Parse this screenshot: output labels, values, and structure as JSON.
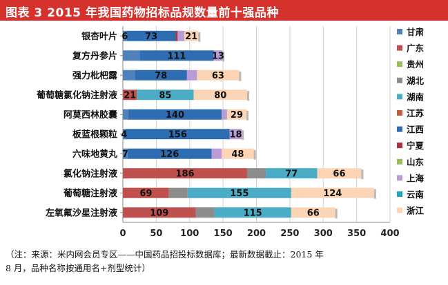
{
  "title": "图表 3    2015 年我国药物招标品规数量前十强品种",
  "note": {
    "line1": "（注：来源：米内网会员专区——中国药品招投标数据库；最新数据截止：2015 年",
    "line2": "8 月，品种名称按通用名+剂型统计）"
  },
  "chart_data": {
    "type": "bar",
    "orientation": "horizontal",
    "stacked": true,
    "xlim": [
      0,
      400
    ],
    "xticks": [
      0,
      50,
      100,
      150,
      200,
      250,
      300,
      350,
      400
    ],
    "grid": true,
    "legend": "right",
    "categories": [
      "银杏叶片",
      "复方丹参片",
      "强力枇杷露",
      "葡萄糖氯化钠注射液",
      "阿莫西林胶囊",
      "板蓝根颗粒",
      "六味地黄丸",
      "氯化钠注射液",
      "葡萄糖注射液",
      "左氧氟沙星注射液"
    ],
    "series": [
      {
        "name": "甘肃",
        "color": "#4f81bd",
        "values": [
          6,
          25,
          18,
          0,
          8,
          4,
          7,
          0,
          0,
          0
        ]
      },
      {
        "name": "广东",
        "color": "#c0504d",
        "values": [
          0,
          0,
          0,
          21,
          0,
          0,
          0,
          186,
          69,
          109
        ]
      },
      {
        "name": "贵州",
        "color": "#9bbb59",
        "values": [
          0,
          0,
          0,
          0,
          0,
          0,
          0,
          0,
          0,
          0
        ]
      },
      {
        "name": "湖北",
        "color": "#8c8c8c",
        "values": [
          0,
          0,
          0,
          0,
          0,
          0,
          0,
          28,
          28,
          28
        ]
      },
      {
        "name": "湖南",
        "color": "#4bacc6",
        "values": [
          0,
          0,
          0,
          85,
          0,
          0,
          0,
          77,
          155,
          115
        ]
      },
      {
        "name": "江苏",
        "color": "#c0603a",
        "values": [
          0,
          0,
          0,
          0,
          0,
          0,
          0,
          0,
          0,
          0
        ]
      },
      {
        "name": "江西",
        "color": "#2f6db3",
        "values": [
          73,
          111,
          78,
          0,
          140,
          156,
          126,
          0,
          0,
          0
        ]
      },
      {
        "name": "宁夏",
        "color": "#a8333c",
        "values": [
          3,
          0,
          0,
          0,
          0,
          0,
          0,
          0,
          0,
          0
        ]
      },
      {
        "name": "山东",
        "color": "#9bbb59",
        "values": [
          0,
          0,
          0,
          0,
          0,
          0,
          0,
          0,
          0,
          0
        ]
      },
      {
        "name": "上海",
        "color": "#b99bd6",
        "values": [
          10,
          13,
          15,
          0,
          8,
          18,
          15,
          0,
          0,
          0
        ]
      },
      {
        "name": "云南",
        "color": "#1da6b8",
        "values": [
          0,
          0,
          0,
          0,
          0,
          0,
          0,
          0,
          0,
          0
        ]
      },
      {
        "name": "浙江",
        "color": "#fbd5b5",
        "values": [
          21,
          0,
          63,
          80,
          29,
          0,
          48,
          66,
          124,
          66
        ]
      }
    ],
    "data_labels": [
      [
        {
          "series": "甘肃",
          "text": "6"
        },
        {
          "series": "江西",
          "text": "73"
        },
        {
          "series": "浙江",
          "text": "21"
        }
      ],
      [
        {
          "series": "江西",
          "text": "111"
        },
        {
          "series": "上海",
          "text": "13"
        }
      ],
      [
        {
          "series": "江西",
          "text": "78"
        },
        {
          "series": "浙江",
          "text": "63"
        }
      ],
      [
        {
          "series": "广东",
          "text": "21"
        },
        {
          "series": "湖南",
          "text": "85"
        },
        {
          "series": "浙江",
          "text": "80"
        }
      ],
      [
        {
          "series": "江西",
          "text": "140"
        },
        {
          "series": "浙江",
          "text": "29"
        }
      ],
      [
        {
          "series": "甘肃",
          "text": "4"
        },
        {
          "series": "江西",
          "text": "156"
        },
        {
          "series": "上海",
          "text": "18"
        }
      ],
      [
        {
          "series": "甘肃",
          "text": "7"
        },
        {
          "series": "江西",
          "text": "126"
        },
        {
          "series": "浙江",
          "text": "48"
        }
      ],
      [
        {
          "series": "广东",
          "text": "186"
        },
        {
          "series": "湖南",
          "text": "77"
        },
        {
          "series": "浙江",
          "text": "66"
        }
      ],
      [
        {
          "series": "广东",
          "text": "69"
        },
        {
          "series": "湖南",
          "text": "155"
        },
        {
          "series": "浙江",
          "text": "124"
        }
      ],
      [
        {
          "series": "广东",
          "text": "109"
        },
        {
          "series": "湖南",
          "text": "115"
        },
        {
          "series": "浙江",
          "text": "66"
        }
      ]
    ]
  }
}
